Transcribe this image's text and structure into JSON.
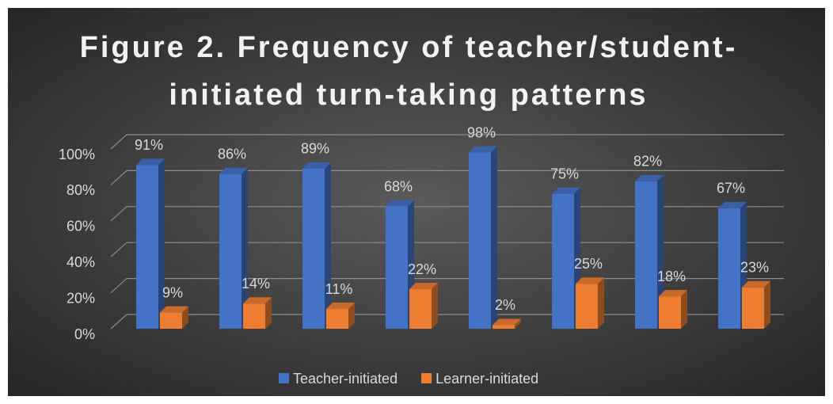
{
  "chart_data": {
    "type": "bar3d",
    "title": "Figure 2. Frequency of teacher/student-initiated turn-taking patterns",
    "categories": [
      null,
      null,
      null,
      null,
      null,
      null,
      null,
      null
    ],
    "series": [
      {
        "name": "Teacher-initiated",
        "color": "#4472c4",
        "values": [
          91,
          86,
          89,
          68,
          98,
          75,
          82,
          67
        ],
        "value_labels": [
          "91%",
          "86%",
          "89%",
          "68%",
          "98%",
          "75%",
          "82%",
          "67%"
        ]
      },
      {
        "name": "Learner-initiated",
        "color": "#ed7d31",
        "values": [
          9,
          14,
          11,
          22,
          2,
          25,
          18,
          23
        ],
        "value_labels": [
          "9%",
          "14%",
          "11%",
          "22%",
          "2%",
          "25%",
          "18%",
          "23%"
        ]
      }
    ],
    "ylim": [
      0,
      100
    ],
    "yticks": [
      {
        "value": 0,
        "label": "0%"
      },
      {
        "value": 20,
        "label": "20%"
      },
      {
        "value": 40,
        "label": "40%"
      },
      {
        "value": 60,
        "label": "60%"
      },
      {
        "value": 80,
        "label": "80%"
      },
      {
        "value": 100,
        "label": "100%"
      }
    ],
    "grid": true,
    "legend": "bottom"
  }
}
